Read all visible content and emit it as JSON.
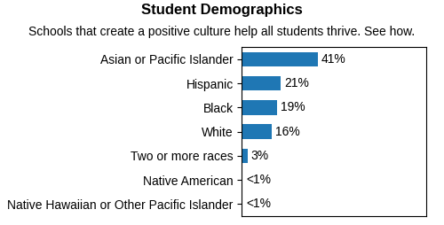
{
  "chart_data": {
    "type": "bar",
    "orientation": "horizontal",
    "title": "Student Demographics",
    "subtitle": "Schools that create a positive culture help all students thrive. See how.",
    "categories": [
      "Asian or Pacific Islander",
      "Hispanic",
      "Black",
      "White",
      "Two or more races",
      "Native American",
      "Native Hawaiian or Other Pacific Islander"
    ],
    "values": [
      41,
      21,
      19,
      16,
      3,
      0.5,
      0.5
    ],
    "value_labels": [
      "41%",
      "21%",
      "19%",
      "16%",
      "3%",
      "<1%",
      "<1%"
    ],
    "data_labels": true,
    "xlim": [
      0,
      100
    ],
    "xticks": [],
    "tick_labels": "y",
    "grid": false
  }
}
